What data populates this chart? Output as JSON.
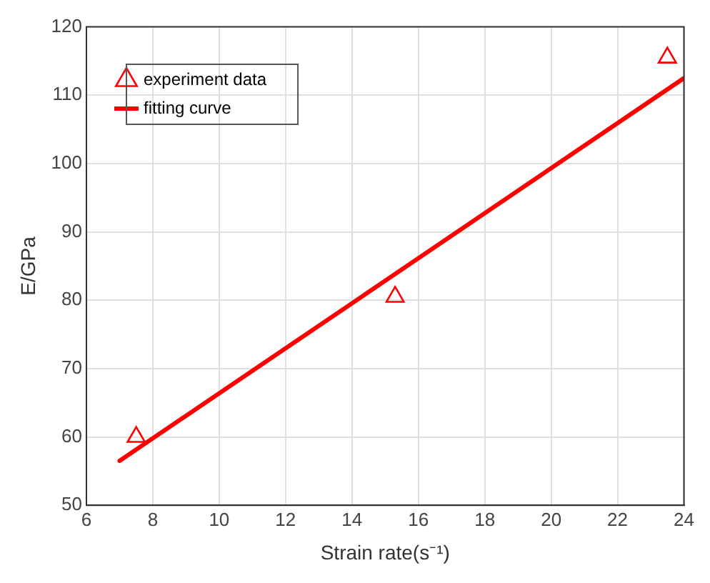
{
  "chart_data": {
    "type": "scatter",
    "xlabel": "Strain rate(s⁻¹)",
    "ylabel": "E/GPa",
    "xlim": [
      6,
      24
    ],
    "xticks": [
      6,
      8,
      10,
      12,
      14,
      16,
      18,
      20,
      22,
      24
    ],
    "ylim": [
      50,
      120
    ],
    "yticks": [
      50,
      60,
      70,
      80,
      90,
      100,
      110,
      120
    ],
    "grid": true,
    "legend": "top left",
    "marker": "triangle",
    "series": [
      {
        "name": "experiment data",
        "type": "scatter",
        "color": "#ff0000",
        "x": [
          7.5,
          15.3,
          23.5
        ],
        "values": [
          60,
          80.5,
          115.5
        ]
      },
      {
        "name": "fitting curve",
        "type": "line",
        "color": "#ff0000",
        "x": [
          7,
          24
        ],
        "values": [
          56.5,
          112.5
        ],
        "marker": "none",
        "line_style": "solid"
      }
    ]
  }
}
